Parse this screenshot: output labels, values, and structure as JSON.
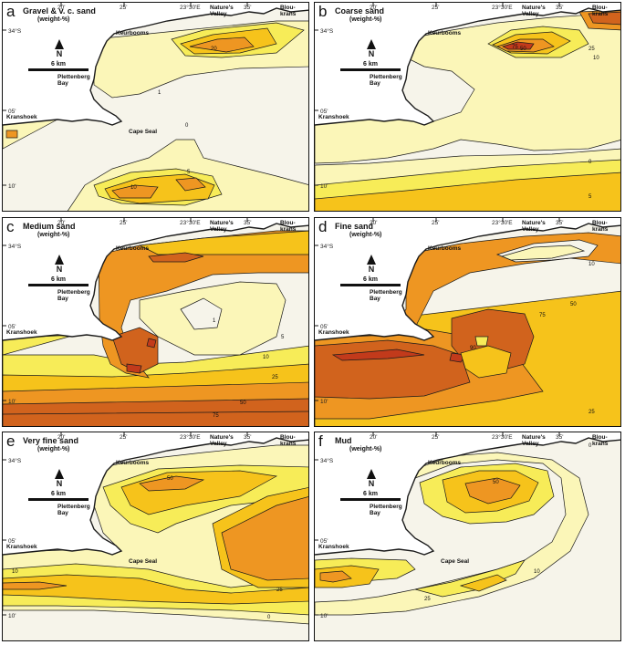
{
  "colors": {
    "c0": "#f6f4ea",
    "c1": "#fbf6b8",
    "c2": "#f7ec58",
    "c3": "#f6c31b",
    "c4": "#ee9622",
    "c5": "#d1631d",
    "c6": "#c23a1b",
    "land": "#ffffff",
    "line": "#1a1a1a"
  },
  "ticks": {
    "lon": [
      "20'",
      "25'",
      "23°30'E",
      "35'"
    ],
    "lat": [
      "34°S",
      "05'",
      "10'"
    ]
  },
  "places": {
    "natures_valley": "Nature's Valley",
    "bloukrans": "Blou-krans",
    "keurbooms": "Keurbooms",
    "plettenberg_bay": "Plettenberg Bay",
    "kranshoek": "Kranshoek",
    "cape_seal": "Cape Seal"
  },
  "north_label": "N",
  "scale_label": "6 km",
  "panels": [
    {
      "letter": "a",
      "title": "Gravel & v. c. sand",
      "subtitle": "(weight-%)",
      "contour_labels": [
        "0",
        "1",
        "5",
        "10",
        "20"
      ]
    },
    {
      "letter": "b",
      "title": "Coarse sand",
      "subtitle": "(weight-%)",
      "contour_labels": [
        "0",
        "5",
        "10",
        "25",
        "50",
        "75"
      ]
    },
    {
      "letter": "c",
      "title": "Medium sand",
      "subtitle": "(weight-%)",
      "contour_labels": [
        "1",
        "5",
        "10",
        "25",
        "50",
        "75"
      ]
    },
    {
      "letter": "d",
      "title": "Fine sand",
      "subtitle": "(weight-%)",
      "contour_labels": [
        "10",
        "25",
        "50",
        "75",
        "90"
      ]
    },
    {
      "letter": "e",
      "title": "Very fine sand",
      "subtitle": "(weight-%)",
      "contour_labels": [
        "0",
        "10",
        "25",
        "50"
      ]
    },
    {
      "letter": "f",
      "title": "Mud",
      "subtitle": "(weight-%)",
      "contour_labels": [
        "0",
        "10",
        "25",
        "50"
      ]
    }
  ]
}
